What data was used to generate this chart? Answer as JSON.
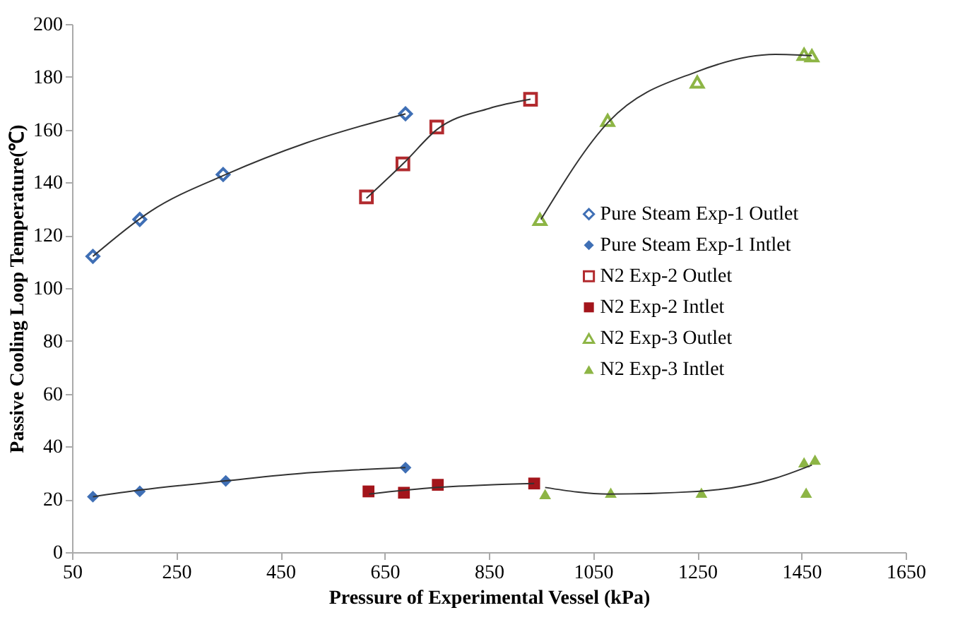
{
  "chart_data": {
    "type": "scatter",
    "xlabel": "Pressure of Experimental Vessel (kPa)",
    "ylabel": "Passive Cooling Loop Temperature(℃)",
    "xlim": [
      50,
      1650
    ],
    "xticks": [
      50,
      250,
      450,
      650,
      850,
      1050,
      1250,
      1450,
      1650
    ],
    "ylim": [
      0,
      200
    ],
    "yticks": [
      0,
      20,
      40,
      60,
      80,
      100,
      120,
      140,
      160,
      180,
      200
    ],
    "grid": false,
    "legend": "right",
    "series": [
      {
        "name": "Pure Steam Exp-1 Outlet",
        "color": "#3f6fb5",
        "marker": "diamond",
        "x": [
          90,
          180,
          340,
          690
        ],
        "values": [
          112,
          126,
          143,
          166
        ]
      },
      {
        "name": "Pure Steam Exp-1 Intlet",
        "color": "#3f6fb5",
        "marker": "diamond",
        "x": [
          90,
          180,
          345,
          690
        ],
        "values": [
          21,
          23,
          27,
          32
        ]
      },
      {
        "name": "N2 Exp-2 Outlet",
        "color": "#b22a2e",
        "marker": "square",
        "x": [
          615,
          685,
          750,
          930
        ],
        "values": [
          134.5,
          147,
          161,
          171.5
        ]
      },
      {
        "name": "N2 Exp-2 Intlet",
        "color": "#a3151b",
        "marker": "square",
        "x": [
          619,
          687,
          752,
          937
        ],
        "values": [
          23,
          22.5,
          25.5,
          26
        ]
      },
      {
        "name": "N2 Exp-3 Outlet",
        "color": "#8db545",
        "marker": "triangle",
        "x": [
          948,
          1078,
          1250,
          1455,
          1470
        ],
        "values": [
          126,
          163.5,
          178,
          188.5,
          188
        ]
      },
      {
        "name": "N2 Exp-3 Intlet",
        "color": "#8db545",
        "marker": "triangle",
        "x": [
          958,
          1084,
          1258,
          1459,
          1455,
          1476
        ],
        "values": [
          22,
          22.5,
          22.5,
          22.5,
          34,
          35
        ]
      },
      {
        "type": "line",
        "color": "#333333",
        "x": [
          90,
          200,
          345,
          500,
          690
        ],
        "values": [
          112,
          129,
          143,
          155,
          166
        ]
      },
      {
        "type": "line",
        "color": "#333333",
        "x": [
          615,
          690,
          750,
          850,
          930
        ],
        "values": [
          134,
          148,
          160,
          168,
          171.5
        ]
      },
      {
        "type": "line",
        "color": "#333333",
        "x": [
          950,
          1080,
          1250,
          1400,
          1470
        ],
        "values": [
          126,
          163,
          182,
          188.5,
          188
        ]
      },
      {
        "type": "line",
        "color": "#333333",
        "x": [
          90,
          180,
          345,
          500,
          690
        ],
        "values": [
          21,
          23.5,
          27,
          30,
          32
        ]
      },
      {
        "type": "line",
        "color": "#333333",
        "x": [
          620,
          750,
          850,
          937
        ],
        "values": [
          22,
          24.5,
          25.5,
          26
        ]
      },
      {
        "type": "line",
        "color": "#333333",
        "x": [
          958,
          1080,
          1250,
          1400,
          1470
        ],
        "values": [
          24.5,
          22,
          23,
          28,
          33
        ]
      }
    ]
  }
}
